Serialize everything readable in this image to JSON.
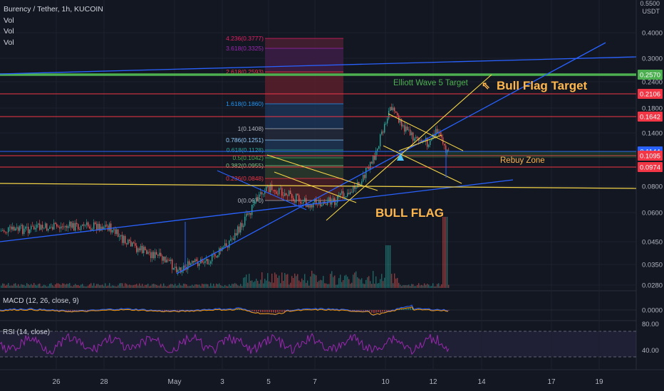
{
  "header": {
    "symbol_line": "Burency / Tether, 1h, KUCOIN",
    "volume_labels": [
      "Vol",
      "Vol",
      "Vol"
    ]
  },
  "price_axis": {
    "top_partial": "0.5500",
    "unit": "USDT",
    "ticks": [
      "0.4000",
      "0.3000",
      "0.2400",
      "0.1800",
      "0.1400",
      "0.1000",
      "0.0800",
      "0.0600",
      "0.0450",
      "0.0350",
      "0.0280"
    ],
    "badges": [
      {
        "label": "0.2570",
        "color": "#4caf50"
      },
      {
        "label": "0.2106",
        "color": "#f23645"
      },
      {
        "label": "0.1642",
        "color": "#f23645"
      },
      {
        "label": "0.1144",
        "color": "#2962ff"
      },
      {
        "label": "0.1095",
        "color": "#f23645"
      },
      {
        "label": "0.0974",
        "color": "#f23645"
      }
    ]
  },
  "fibonacci": [
    {
      "label": "4.236(0.3777)",
      "color": "#e91e63"
    },
    {
      "label": "3.618(0.3325)",
      "color": "#9c27b0"
    },
    {
      "label": "2.618(0.2593)",
      "color": "#f23645"
    },
    {
      "label": "1.618(0.1860)",
      "color": "#2196f3"
    },
    {
      "label": "1(0.1408)",
      "color": "#b2b5be"
    },
    {
      "label": "0.786(0.1251)",
      "color": "#90caf9"
    },
    {
      "label": "0.618(0.1128)",
      "color": "#26a69a"
    },
    {
      "label": "0.5(0.1042)",
      "color": "#4caf50"
    },
    {
      "label": "0.382(0.0955)",
      "color": "#81c784"
    },
    {
      "label": "0.236(0.0848)",
      "color": "#f23645"
    },
    {
      "label": "0(0.0670)",
      "color": "#b2b5be"
    }
  ],
  "annotations": {
    "elliott": "Elliott Wave 5 Target",
    "bull_flag_target": "Bull Flag Target",
    "arrow": "⇖",
    "rebuy": "Rebuy Zone",
    "bull_flag": "BULL FLAG"
  },
  "macd": {
    "label": "MACD (12, 26, close, 9)",
    "tick": "0.0000"
  },
  "rsi": {
    "label": "RSI (14, close)",
    "ticks": [
      "80.00",
      "40.00"
    ]
  },
  "time_axis": [
    "26",
    "28",
    "May",
    "3",
    "5",
    "7",
    "10",
    "12",
    "14",
    "17",
    "19"
  ],
  "colors": {
    "background": "#131722",
    "up": "#26a69a",
    "down": "#ef5350",
    "trend_blue": "#2962ff",
    "trend_yellow": "#ffb74d",
    "green_line": "#4caf50",
    "red_line": "#f23645",
    "rsi": "#9c27b0"
  }
}
